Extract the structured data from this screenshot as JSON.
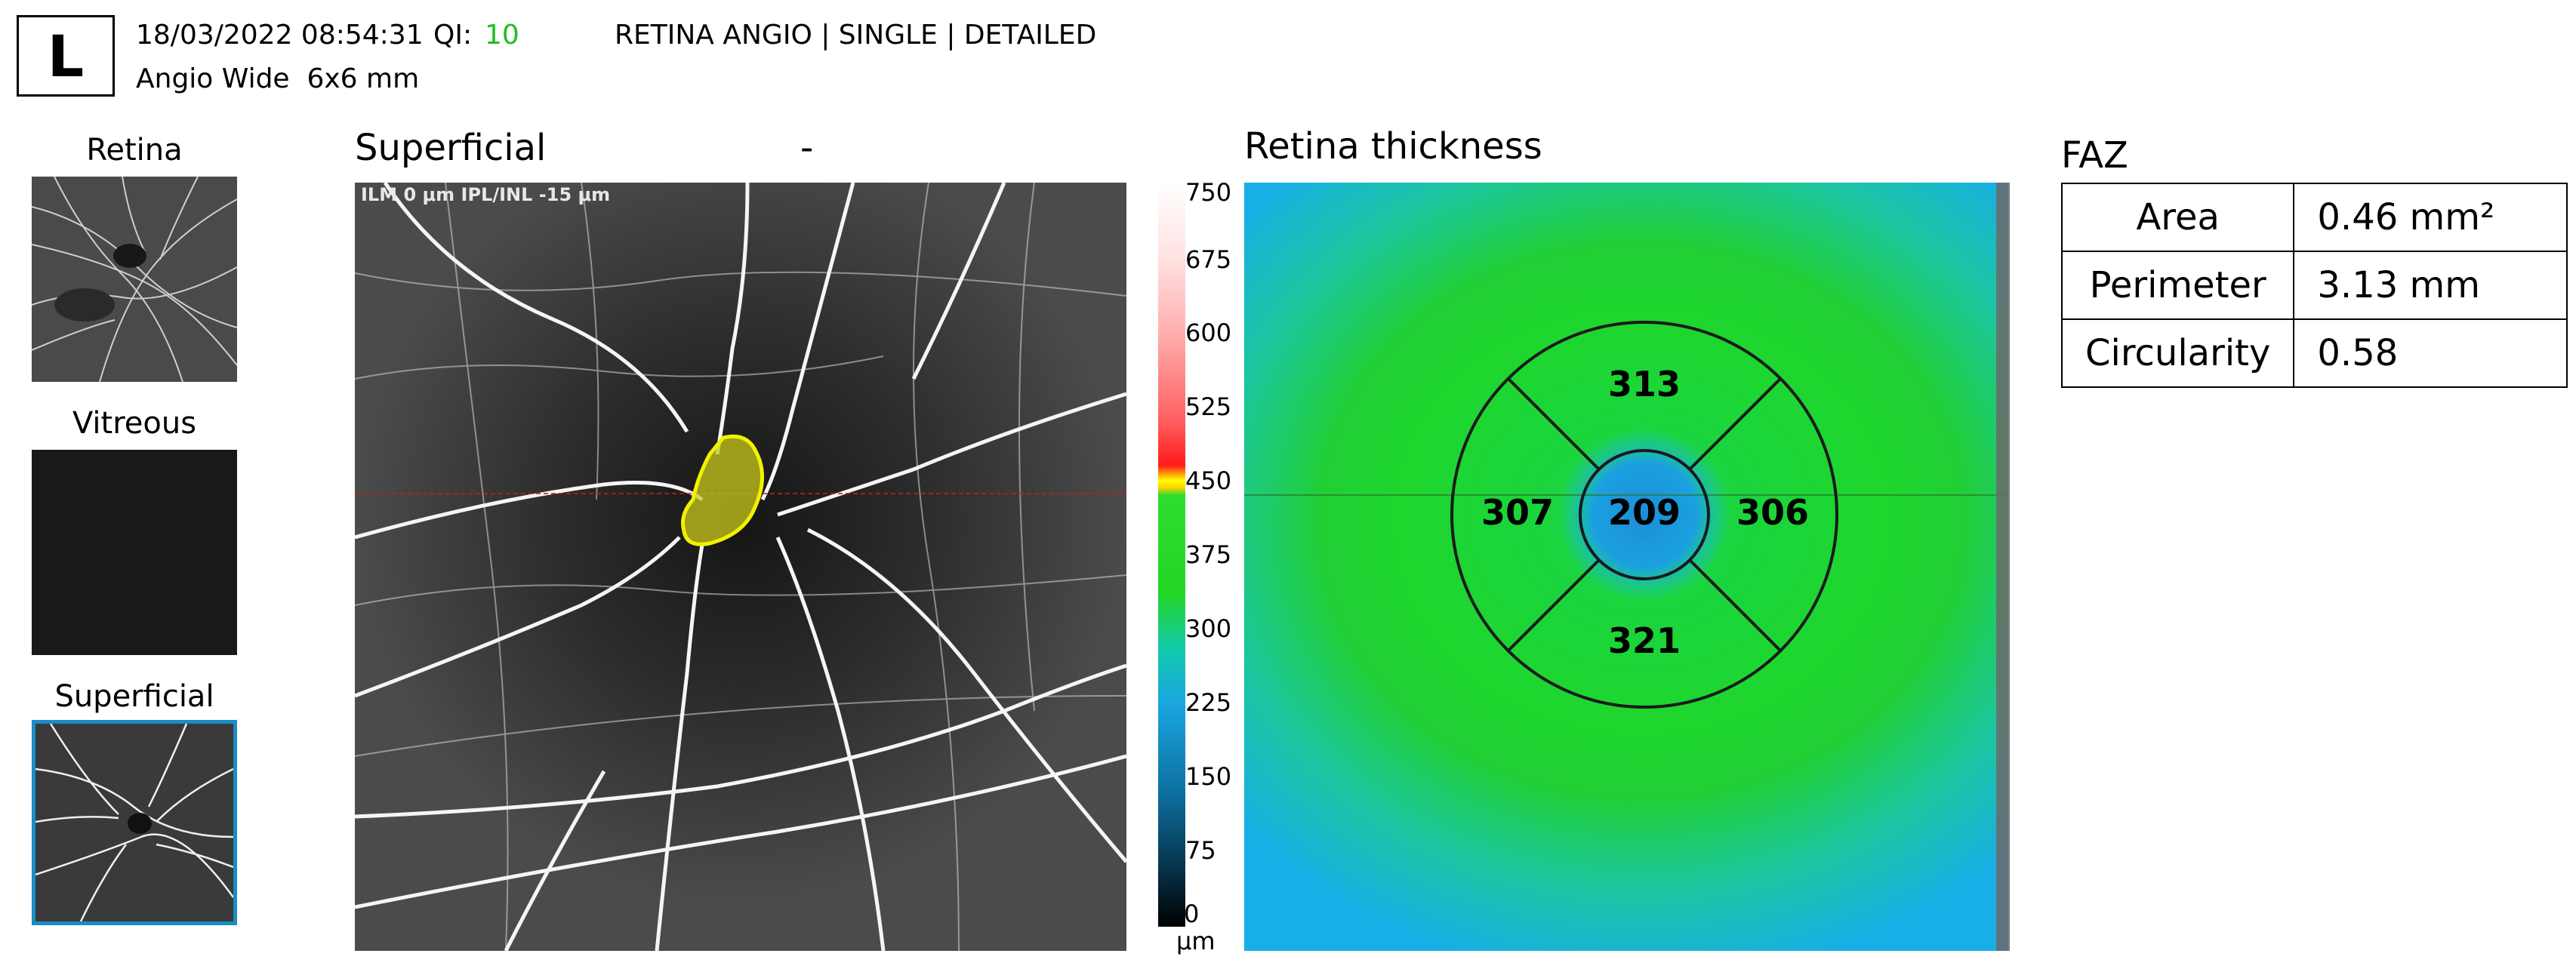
{
  "header": {
    "eye": "L",
    "datetime": "18/03/2022 08:54:31",
    "qi_label": "QI:",
    "qi_value": "10",
    "mode": "RETINA ANGIO | SINGLE | DETAILED",
    "scan": "Angio Wide  6x6 mm"
  },
  "thumbnails": [
    {
      "title": "Retina"
    },
    {
      "title": "Vitreous"
    },
    {
      "title": "Superficial"
    }
  ],
  "angio": {
    "title": "Superficial",
    "dash": "-",
    "layer_label": "ILM 0 μm   IPL/INL -15 μm"
  },
  "scale": {
    "ticks": [
      "750",
      "675",
      "600",
      "525",
      "450",
      "375",
      "300",
      "225",
      "150",
      "75",
      "0"
    ],
    "unit": "μm"
  },
  "thickness": {
    "title": "Retina thickness",
    "center": "209",
    "superior": "313",
    "inferior": "321",
    "nasal": "307",
    "temporal": "306"
  },
  "faz": {
    "title": "FAZ",
    "rows": [
      {
        "label": "Area",
        "value": "0.46 mm²"
      },
      {
        "label": "Perimeter",
        "value": "3.13 mm"
      },
      {
        "label": "Circularity",
        "value": "0.58"
      }
    ]
  },
  "colors": {
    "qi_good": "#1fbf1f",
    "selected_border": "#1a8dc6",
    "faz_outline": "#f2f200"
  }
}
